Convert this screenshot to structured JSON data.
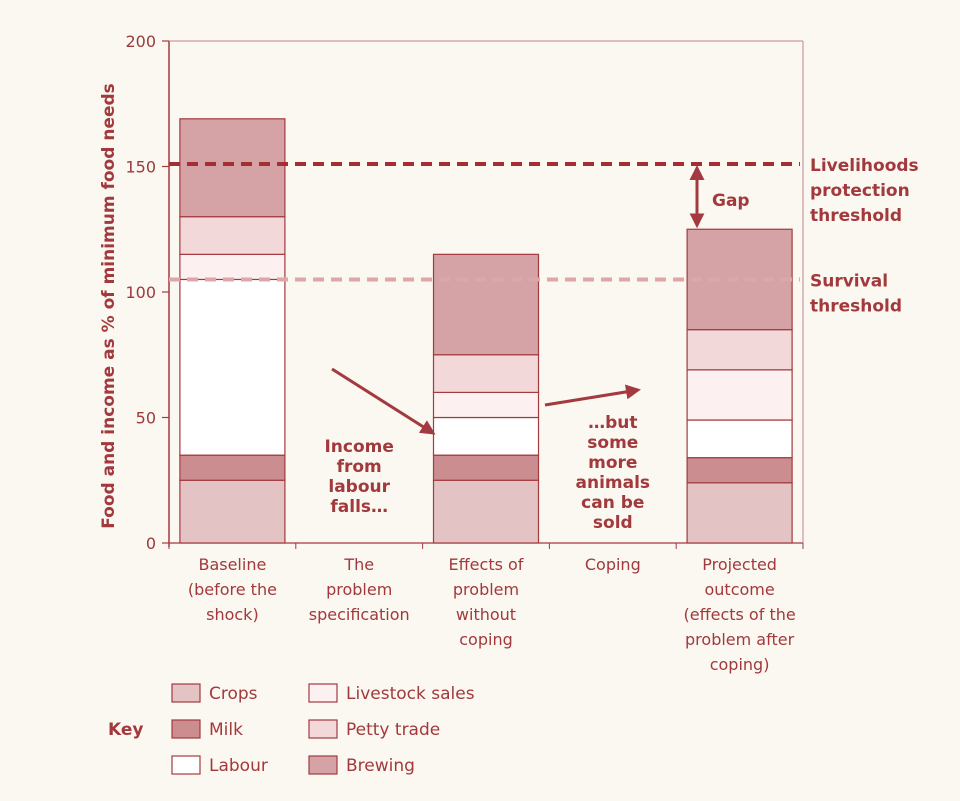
{
  "chart_data": {
    "type": "bar",
    "stacked": true,
    "ylabel": "Food and income as % of minimum food needs",
    "ylim": [
      0,
      200
    ],
    "yticks": [
      0,
      50,
      100,
      150,
      200
    ],
    "grid": false,
    "categories": [
      [
        "Baseline",
        "(before the",
        "shock)"
      ],
      [
        "The",
        "problem",
        "specification"
      ],
      [
        "Effects of",
        "problem",
        "without",
        "coping"
      ],
      [
        "Coping"
      ],
      [
        "Projected",
        "outcome",
        "(effects of the",
        "problem after",
        "coping)"
      ]
    ],
    "series": [
      {
        "name": "Crops",
        "color": "#e3c3c4",
        "values": [
          25,
          null,
          25,
          null,
          24
        ]
      },
      {
        "name": "Milk",
        "color": "#cc8d90",
        "values": [
          10,
          null,
          10,
          null,
          10
        ]
      },
      {
        "name": "Labour",
        "color": "#ffffff",
        "values": [
          70,
          null,
          15,
          null,
          15
        ]
      },
      {
        "name": "Livestock sales",
        "color": "#fcf0f0",
        "values": [
          10,
          null,
          10,
          null,
          20
        ]
      },
      {
        "name": "Petty trade",
        "color": "#f2d8d9",
        "values": [
          15,
          null,
          15,
          null,
          16
        ]
      },
      {
        "name": "Brewing",
        "color": "#d5a2a5",
        "values": [
          39,
          null,
          40,
          null,
          40
        ]
      }
    ],
    "thresholds": [
      {
        "value": 151,
        "label": [
          "Livelihoods",
          "protection",
          "threshold"
        ],
        "color": "#a32f35"
      },
      {
        "value": 105,
        "label": [
          "Survival",
          "threshold"
        ],
        "color": "#dda6a8"
      }
    ],
    "annotations": {
      "income_falls": [
        "Income",
        "from",
        "labour",
        "falls…"
      ],
      "animals_sold": [
        "…but",
        "some",
        "more",
        "animals",
        "can be",
        "sold"
      ],
      "gap": "Gap"
    },
    "legend": {
      "title": "Key",
      "position": "bottom"
    }
  }
}
